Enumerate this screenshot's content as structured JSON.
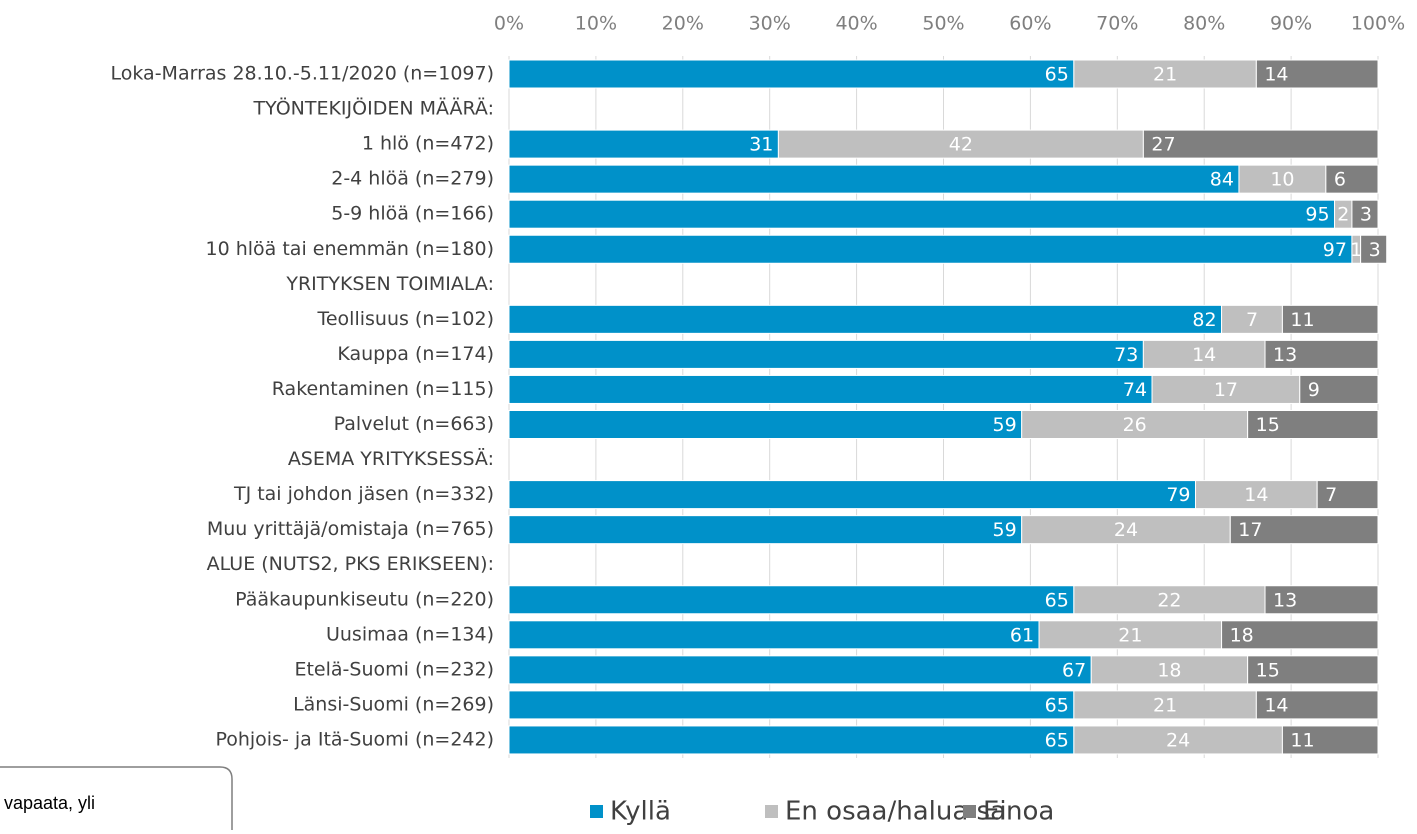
{
  "chart_data": {
    "type": "stacked-barh",
    "categories": [
      "Loka-Marras 28.10.-5.11/2020 (n=1097)",
      "TYÖNTEKIJÖIDEN MÄÄRÄ:",
      "1 hlö (n=472)",
      "2-4 hlöä (n=279)",
      "5-9 hlöä (n=166)",
      "10 hlöä tai enemmän (n=180)",
      "YRITYKSEN TOIMIALA:",
      "Teollisuus (n=102)",
      "Kauppa (n=174)",
      "Rakentaminen (n=115)",
      "Palvelut (n=663)",
      "ASEMA YRITYKSESSÄ:",
      "TJ tai johdon jäsen (n=332)",
      "Muu yrittäjä/omistaja (n=765)",
      "ALUE (NUTS2, PKS ERIKSEEN):",
      "Pääkaupunkiseutu (n=220)",
      "Uusimaa (n=134)",
      "Etelä-Suomi (n=232)",
      "Länsi-Suomi (n=269)",
      "Pohjois- ja Itä-Suomi (n=242)"
    ],
    "series": [
      {
        "name": "Kyllä",
        "color": "#0091c9",
        "values": [
          65,
          null,
          31,
          84,
          95,
          97,
          null,
          82,
          73,
          74,
          59,
          null,
          79,
          59,
          null,
          65,
          61,
          67,
          65,
          65
        ]
      },
      {
        "name": "En osaa/halua sanoa",
        "color": "#bfbfbf",
        "values": [
          21,
          null,
          42,
          10,
          2,
          1,
          null,
          7,
          14,
          17,
          26,
          null,
          14,
          24,
          null,
          22,
          21,
          18,
          21,
          24
        ]
      },
      {
        "name": "Ei",
        "color": "#7f7f7f",
        "values": [
          14,
          null,
          27,
          6,
          3,
          3,
          null,
          11,
          13,
          9,
          15,
          null,
          7,
          17,
          null,
          13,
          18,
          15,
          14,
          11
        ]
      }
    ],
    "xlim": [
      0,
      100
    ],
    "xticks": [
      {
        "value": 0,
        "label": "0%"
      },
      {
        "value": 10,
        "label": "10%"
      },
      {
        "value": 20,
        "label": "20%"
      },
      {
        "value": 30,
        "label": "30%"
      },
      {
        "value": 40,
        "label": "40%"
      },
      {
        "value": 50,
        "label": "50%"
      },
      {
        "value": 60,
        "label": "60%"
      },
      {
        "value": 70,
        "label": "70%"
      },
      {
        "value": 80,
        "label": "80%"
      },
      {
        "value": 90,
        "label": "90%"
      },
      {
        "value": 100,
        "label": "100%"
      }
    ],
    "grid": true,
    "note": "vapaata, yli"
  }
}
